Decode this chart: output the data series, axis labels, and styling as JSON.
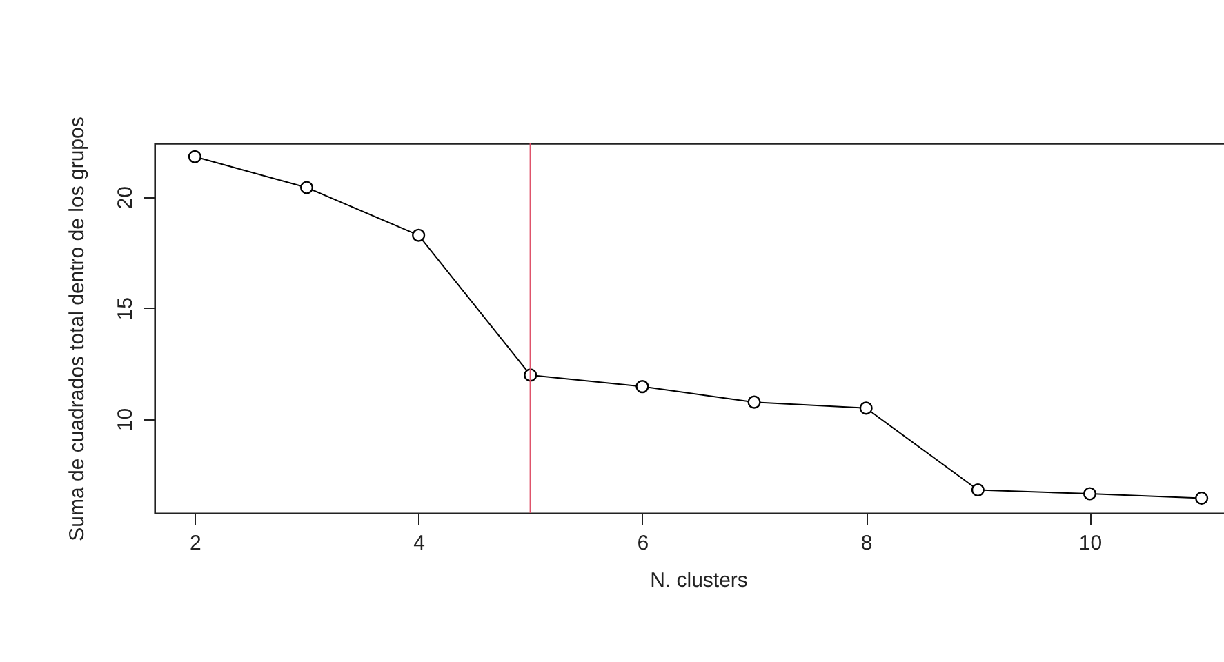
{
  "chart_data": {
    "type": "line",
    "xlabel": "N. clusters",
    "ylabel": "Suma de cuadrados total dentro de los grupos",
    "x": [
      2,
      3,
      4,
      5,
      6,
      7,
      8,
      9,
      10,
      11
    ],
    "series": [
      {
        "color": "#000000",
        "values": [
          21.82,
          20.43,
          18.28,
          11.98,
          11.46,
          10.76,
          10.49,
          6.8,
          6.63,
          6.43
        ]
      }
    ],
    "xlim": [
      1.64,
      11.36
    ],
    "xticks": [
      2,
      4,
      6,
      8,
      10
    ],
    "ylim": [
      5.76,
      22.42
    ],
    "yticks": [
      10,
      15,
      20
    ],
    "marker": "circle",
    "line_style": "solid",
    "grid": false,
    "ref_lines": [
      {
        "axis": "x",
        "value": 5,
        "color": "#df536b"
      }
    ]
  }
}
